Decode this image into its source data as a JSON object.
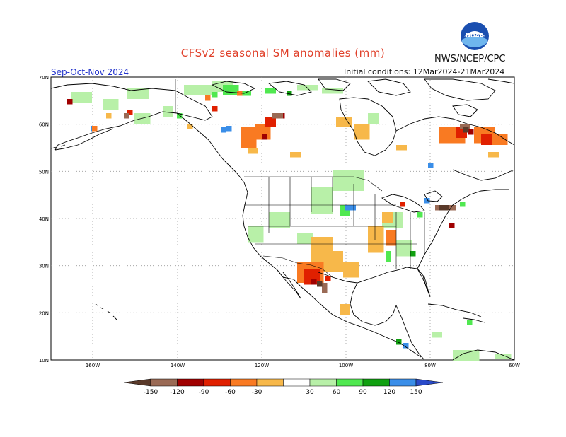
{
  "header": {
    "title": "CFSv2 seasonal SM anomalies (mm)",
    "period": "Sep-Oct-Nov 2024",
    "initial_conditions": "Initial conditions: 12Mar2024-21Mar2024",
    "agency": "NWS/NCEP/CPC",
    "logo_text": "NOAA"
  },
  "map": {
    "lat_labels": [
      "70N",
      "60N",
      "50N",
      "40N",
      "30N",
      "20N",
      "10N"
    ],
    "lon_labels": [
      "160W",
      "140W",
      "120W",
      "100W",
      "80W",
      "60W"
    ],
    "ocean_color": "#ffffff",
    "coast_color": "#000000"
  },
  "legend": {
    "ticks": [
      "-150",
      "-120",
      "-90",
      "-60",
      "-30",
      "30",
      "60",
      "90",
      "120",
      "150"
    ],
    "colors": {
      "below_-150": "#5a3a2a",
      "-150_-120": "#9a6a55",
      "-120_-90": "#a00000",
      "-90_-60": "#e02000",
      "-60_-30": "#f97a22",
      "-30_0": "#f7b84a",
      "neutral": "#ffffff",
      "30_60": "#b8f0a8",
      "60_90": "#50e850",
      "90_120": "#10a010",
      "120_150": "#3a8ee8",
      "above_150": "#2a4ac8"
    }
  }
}
